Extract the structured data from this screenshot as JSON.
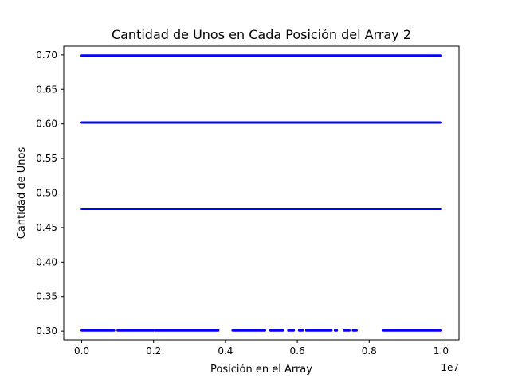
{
  "chart_data": {
    "type": "scatter",
    "title": "Cantidad de Unos en Cada Posición del Array 2",
    "xlabel": "Posición en el Array",
    "ylabel": "Cantidad de Unos",
    "x_offset_label": "1e7",
    "xlim": [
      -500000,
      10500000
    ],
    "ylim": [
      0.2875,
      0.7125
    ],
    "x_ticks": [
      0,
      2000000,
      4000000,
      6000000,
      8000000,
      10000000
    ],
    "x_tick_labels": [
      "0.0",
      "0.2",
      "0.4",
      "0.6",
      "0.8",
      "1.0"
    ],
    "y_ticks": [
      0.3,
      0.35,
      0.4,
      0.45,
      0.5,
      0.55,
      0.6,
      0.65,
      0.7
    ],
    "y_tick_labels": [
      "0.30",
      "0.35",
      "0.40",
      "0.45",
      "0.50",
      "0.55",
      "0.60",
      "0.65",
      "0.70"
    ],
    "grid": false,
    "marker_color": "#0000ff",
    "series": [
      {
        "y": 0.699,
        "x_ranges": [
          [
            0,
            10000000
          ]
        ]
      },
      {
        "y": 0.602,
        "x_ranges": [
          [
            0,
            10000000
          ]
        ]
      },
      {
        "y": 0.477,
        "x_ranges": [
          [
            0,
            10000000
          ]
        ]
      },
      {
        "y": 0.301,
        "x_ranges": [
          [
            0,
            900000
          ],
          [
            1000000,
            2000000
          ],
          [
            2050000,
            3800000
          ],
          [
            4200000,
            5100000
          ],
          [
            5250000,
            5600000
          ],
          [
            5750000,
            5900000
          ],
          [
            6050000,
            6150000
          ],
          [
            6250000,
            6950000
          ],
          [
            7050000,
            7100000
          ],
          [
            7300000,
            7450000
          ],
          [
            7550000,
            7650000
          ],
          [
            8400000,
            10000000
          ]
        ]
      }
    ]
  }
}
